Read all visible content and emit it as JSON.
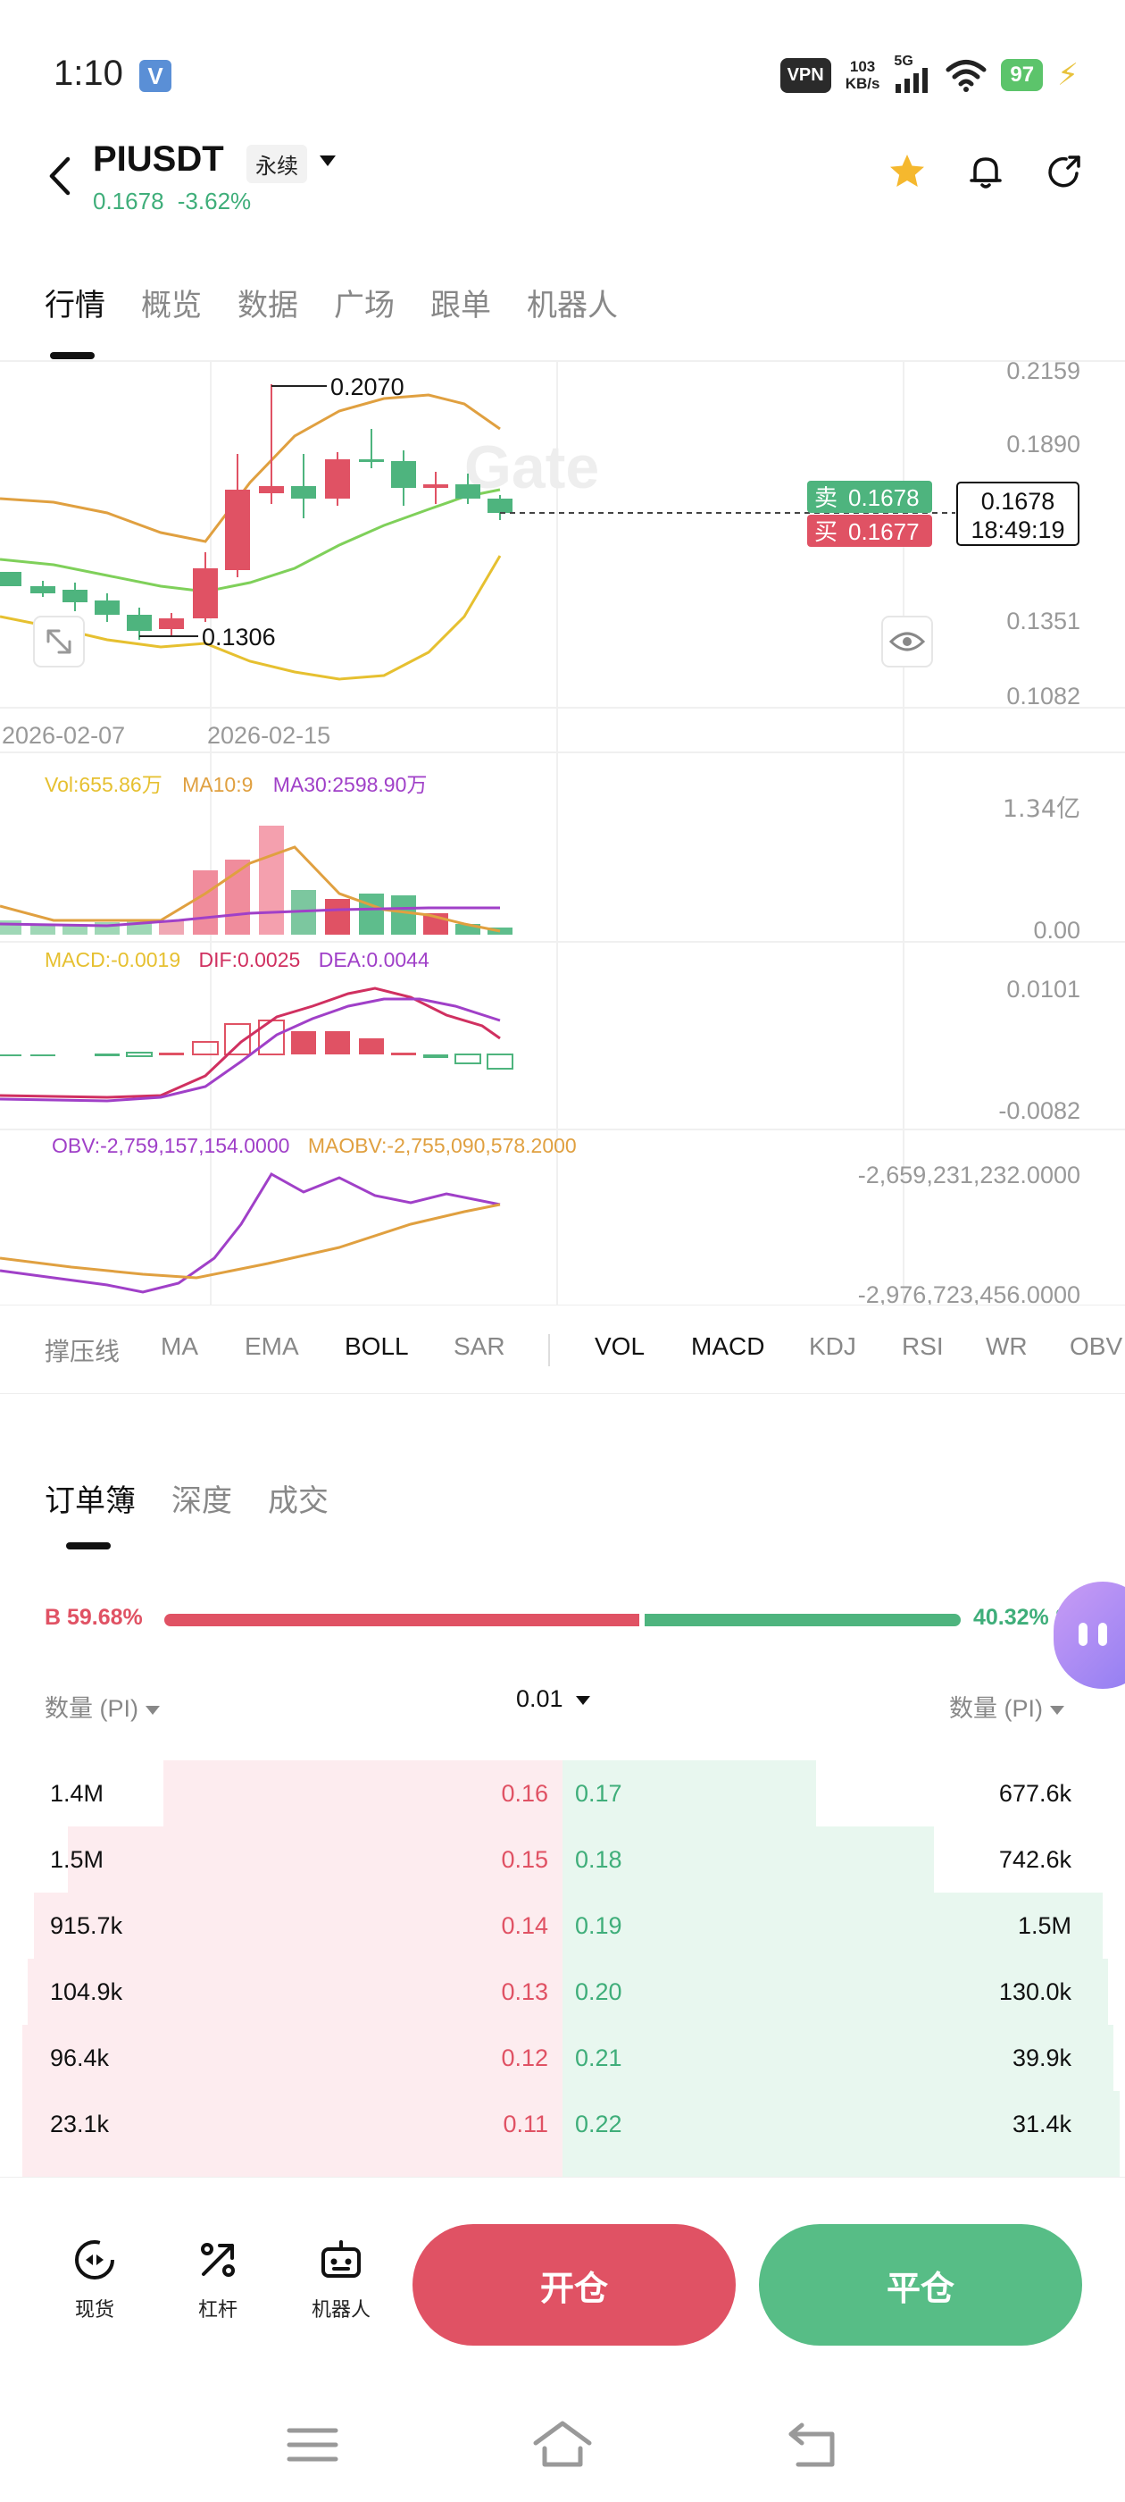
{
  "status": {
    "time": "1:10",
    "v_badge": "V",
    "vpn": "VPN",
    "speed_top": "103",
    "speed_bottom": "KB/s",
    "network": "5G",
    "battery": "97"
  },
  "header": {
    "symbol": "PIUSDT",
    "contract": "永续",
    "price": "0.1678",
    "change": "-3.62%"
  },
  "tabs": [
    "行情",
    "概览",
    "数据",
    "广场",
    "跟单",
    "机器人"
  ],
  "chart": {
    "watermark": "Gate",
    "price_axis": [
      "0.2159",
      "0.1890",
      "0.1351",
      "0.1082"
    ],
    "high_label": "0.2070",
    "low_label": "0.1306",
    "dates": [
      "2026-02-07",
      "2026-02-15"
    ],
    "sell_label": "卖",
    "sell_price": "0.1678",
    "buy_label": "买",
    "buy_price": "0.1677",
    "current_price": "0.1678",
    "countdown": "18:49:19",
    "vol_legend_vol": "Vol:655.86万",
    "vol_legend_ma10": "MA10:9",
    "vol_legend_ma30": "MA30:2598.90万",
    "vol_axis_top": "1.34亿",
    "vol_axis_bottom": "0.00",
    "macd_legend_macd": "MACD:-0.0019",
    "macd_legend_dif": "DIF:0.0025",
    "macd_legend_dea": "DEA:0.0044",
    "macd_axis_top": "0.0101",
    "macd_axis_bottom": "-0.0082",
    "obv_legend_obv": "OBV:-2,759,157,154.0000",
    "obv_legend_maobv": "MAOBV:-2,755,090,578.2000",
    "obv_axis_top": "-2,659,231,232.0000",
    "obv_axis_bottom": "-2,976,723,456.0000",
    "colors": {
      "up": "#e05264",
      "down": "#4eb47e",
      "ma_orange": "#e0a040",
      "ma_green": "#7fd05a",
      "ma_yellow": "#e6c030",
      "purple": "#a040c8"
    }
  },
  "indicators_main": [
    "撑压线",
    "MA",
    "EMA",
    "BOLL",
    "SAR"
  ],
  "indicators_sub": [
    "VOL",
    "MACD",
    "KDJ",
    "RSI",
    "WR",
    "OBV"
  ],
  "orderbook": {
    "tabs": [
      "订单簿",
      "深度",
      "成交"
    ],
    "buy_ratio": "B 59.68%",
    "sell_ratio": "40.32% S",
    "buy_ratio_value": 59.68,
    "qty_left": "数量 (PI)",
    "precision": "0.01",
    "qty_right": "数量 (PI)",
    "rows": [
      {
        "bid_qty": "1.4M",
        "bid_price": "0.16",
        "ask_price": "0.17",
        "ask_qty": "677.6k",
        "bid_depth": 0.71,
        "ask_depth": 0.45
      },
      {
        "bid_qty": "1.5M",
        "bid_price": "0.15",
        "ask_price": "0.18",
        "ask_qty": "742.6k",
        "bid_depth": 0.88,
        "ask_depth": 0.66
      },
      {
        "bid_qty": "915.7k",
        "bid_price": "0.14",
        "ask_price": "0.19",
        "ask_qty": "1.5M",
        "bid_depth": 0.94,
        "ask_depth": 0.96
      },
      {
        "bid_qty": "104.9k",
        "bid_price": "0.13",
        "ask_price": "0.20",
        "ask_qty": "130.0k",
        "bid_depth": 0.95,
        "ask_depth": 0.97
      },
      {
        "bid_qty": "96.4k",
        "bid_price": "0.12",
        "ask_price": "0.21",
        "ask_qty": "39.9k",
        "bid_depth": 0.96,
        "ask_depth": 0.98
      },
      {
        "bid_qty": "23.1k",
        "bid_price": "0.11",
        "ask_price": "0.22",
        "ask_qty": "31.4k",
        "bid_depth": 0.96,
        "ask_depth": 0.99
      },
      {
        "bid_qty": "",
        "bid_price": "",
        "ask_price": "",
        "ask_qty": "",
        "bid_depth": 0.96,
        "ask_depth": 0.99
      }
    ]
  },
  "bottom": {
    "spot": "现货",
    "leverage": "杠杆",
    "bot": "机器人",
    "open": "开仓",
    "close": "平仓"
  }
}
